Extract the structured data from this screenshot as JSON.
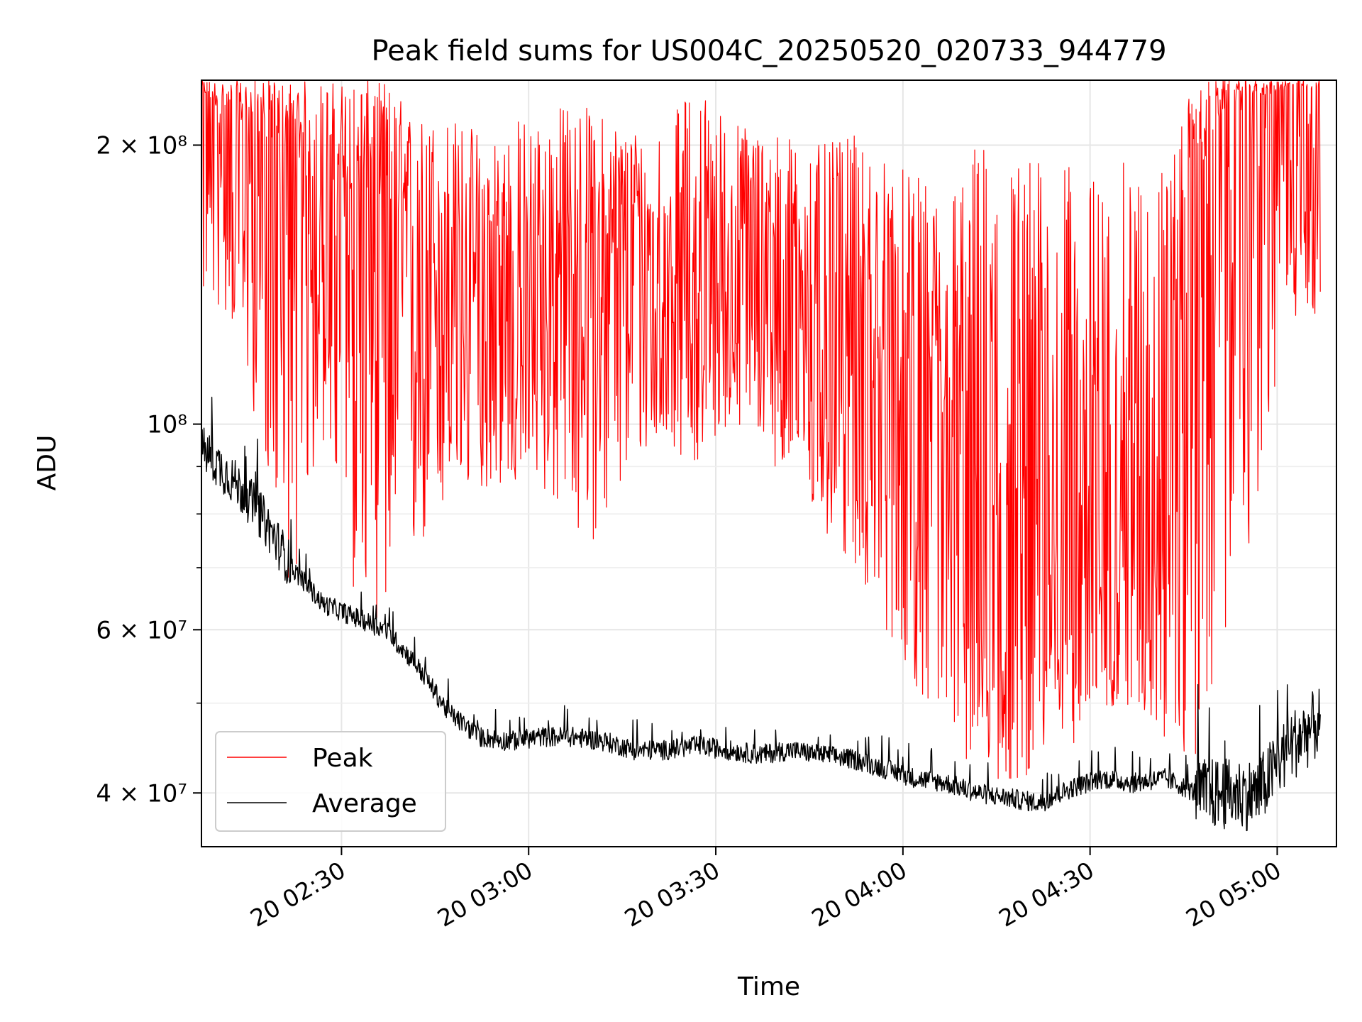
{
  "chart_data": {
    "type": "line",
    "title": "Peak field sums for US004C_20250520_020733_944779",
    "xlabel": "Time",
    "ylabel": "ADU",
    "y_scale": "log",
    "ylim": [
      35000000,
      235000000
    ],
    "xlim": [
      "2025-05-20 02:07:33",
      "2025-05-20 05:09:30"
    ],
    "grid": true,
    "legend_position": "lower-left",
    "x_ticks": [
      {
        "t": "2025-05-20 02:30",
        "label": "20 02:30"
      },
      {
        "t": "2025-05-20 03:00",
        "label": "20 03:00"
      },
      {
        "t": "2025-05-20 03:30",
        "label": "20 03:30"
      },
      {
        "t": "2025-05-20 04:00",
        "label": "20 04:00"
      },
      {
        "t": "2025-05-20 04:30",
        "label": "20 04:30"
      },
      {
        "t": "2025-05-20 05:00",
        "label": "20 05:00"
      }
    ],
    "y_ticks_major": [
      {
        "value": 40000000,
        "label": "4 × 10⁷"
      },
      {
        "value": 60000000,
        "label": "6 × 10⁷"
      },
      {
        "value": 100000000,
        "label": "10⁸"
      },
      {
        "value": 200000000,
        "label": "2 × 10⁸"
      }
    ],
    "y_ticks_minor": [
      50000000,
      70000000,
      80000000,
      90000000
    ],
    "series": [
      {
        "name": "Peak",
        "color": "#ff0000",
        "x": [
          "2025-05-20 02:07",
          "2025-05-20 02:12",
          "2025-05-20 02:17",
          "2025-05-20 02:22",
          "2025-05-20 02:27",
          "2025-05-20 02:32",
          "2025-05-20 02:37",
          "2025-05-20 02:42",
          "2025-05-20 02:47",
          "2025-05-20 02:52",
          "2025-05-20 02:57",
          "2025-05-20 03:02",
          "2025-05-20 03:07",
          "2025-05-20 03:12",
          "2025-05-20 03:17",
          "2025-05-20 03:22",
          "2025-05-20 03:27",
          "2025-05-20 03:32",
          "2025-05-20 03:37",
          "2025-05-20 03:42",
          "2025-05-20 03:47",
          "2025-05-20 03:52",
          "2025-05-20 03:57",
          "2025-05-20 04:02",
          "2025-05-20 04:07",
          "2025-05-20 04:12",
          "2025-05-20 04:17",
          "2025-05-20 04:22",
          "2025-05-20 04:27",
          "2025-05-20 04:32",
          "2025-05-20 04:37",
          "2025-05-20 04:42",
          "2025-05-20 04:47",
          "2025-05-20 04:52",
          "2025-05-20 04:57",
          "2025-05-20 05:02",
          "2025-05-20 05:07"
        ],
        "values": [
          230000000,
          210000000,
          205000000,
          190000000,
          170000000,
          180000000,
          175000000,
          140000000,
          150000000,
          125000000,
          130000000,
          135000000,
          150000000,
          155000000,
          150000000,
          140000000,
          140000000,
          135000000,
          150000000,
          140000000,
          130000000,
          125000000,
          110000000,
          100000000,
          90000000,
          72000000,
          68000000,
          72000000,
          75000000,
          75000000,
          80000000,
          95000000,
          180000000,
          220000000,
          225000000,
          230000000,
          230000000
        ],
        "min_values": [
          135000000,
          130000000,
          95000000,
          65000000,
          95000000,
          65000000,
          60000000,
          70000000,
          80000000,
          85000000,
          85000000,
          85000000,
          75000000,
          75000000,
          90000000,
          95000000,
          90000000,
          100000000,
          95000000,
          85000000,
          75000000,
          70000000,
          60000000,
          52000000,
          45000000,
          42000000,
          40000000,
          43000000,
          45000000,
          48000000,
          50000000,
          45000000,
          40000000,
          60000000,
          80000000,
          130000000,
          130000000
        ],
        "max_values": [
          235000000,
          235000000,
          235000000,
          235000000,
          235000000,
          235000000,
          235000000,
          215000000,
          215000000,
          210000000,
          215000000,
          215000000,
          225000000,
          215000000,
          210000000,
          210000000,
          235000000,
          215000000,
          210000000,
          205000000,
          200000000,
          205000000,
          195000000,
          185000000,
          180000000,
          205000000,
          200000000,
          195000000,
          190000000,
          185000000,
          195000000,
          190000000,
          235000000,
          235000000,
          235000000,
          235000000,
          235000000
        ]
      },
      {
        "name": "Average",
        "color": "#000000",
        "x": [
          "2025-05-20 02:07",
          "2025-05-20 02:12",
          "2025-05-20 02:17",
          "2025-05-20 02:22",
          "2025-05-20 02:27",
          "2025-05-20 02:32",
          "2025-05-20 02:37",
          "2025-05-20 02:42",
          "2025-05-20 02:47",
          "2025-05-20 02:52",
          "2025-05-20 02:57",
          "2025-05-20 03:02",
          "2025-05-20 03:07",
          "2025-05-20 03:12",
          "2025-05-20 03:17",
          "2025-05-20 03:22",
          "2025-05-20 03:27",
          "2025-05-20 03:32",
          "2025-05-20 03:37",
          "2025-05-20 03:42",
          "2025-05-20 03:47",
          "2025-05-20 03:52",
          "2025-05-20 03:57",
          "2025-05-20 04:02",
          "2025-05-20 04:07",
          "2025-05-20 04:12",
          "2025-05-20 04:17",
          "2025-05-20 04:22",
          "2025-05-20 04:27",
          "2025-05-20 04:32",
          "2025-05-20 04:37",
          "2025-05-20 04:42",
          "2025-05-20 04:47",
          "2025-05-20 04:52",
          "2025-05-20 04:57",
          "2025-05-20 05:02",
          "2025-05-20 05:07"
        ],
        "values": [
          95000000,
          88000000,
          80000000,
          70000000,
          64000000,
          62000000,
          60000000,
          55000000,
          49000000,
          46000000,
          45500000,
          46000000,
          46000000,
          45500000,
          44500000,
          44500000,
          45000000,
          44500000,
          44000000,
          44500000,
          44000000,
          43500000,
          42500000,
          41500000,
          41000000,
          40000000,
          39500000,
          39000000,
          40500000,
          41500000,
          41000000,
          41500000,
          40000000,
          40000000,
          40000000,
          45000000,
          48000000
        ]
      }
    ]
  }
}
